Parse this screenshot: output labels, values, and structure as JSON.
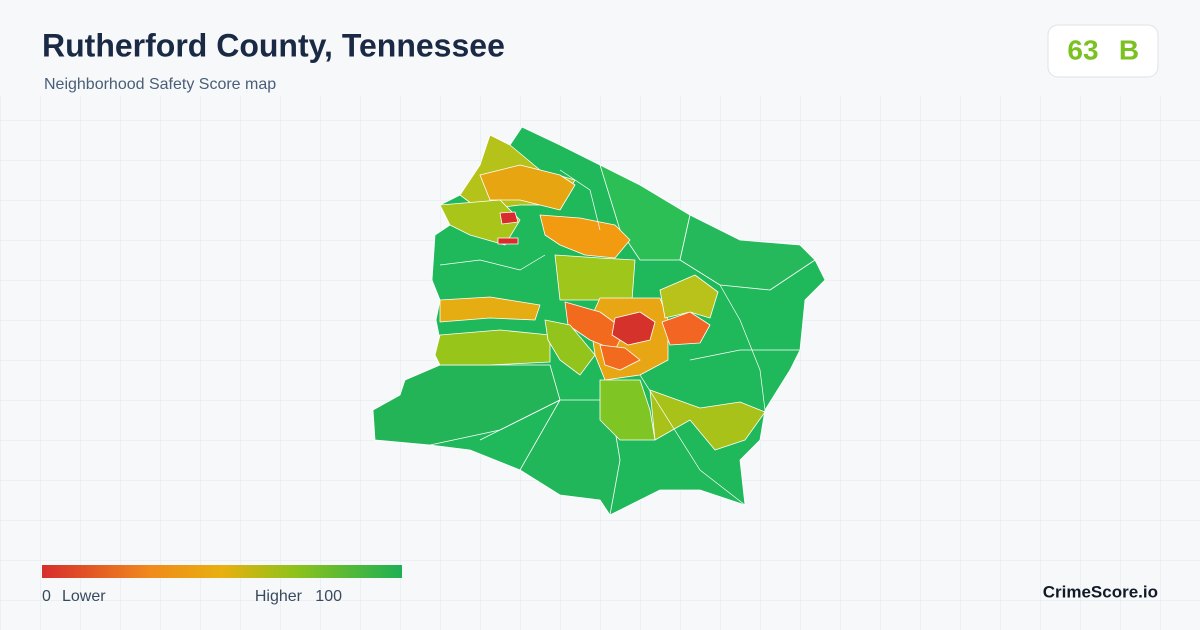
{
  "header": {
    "title": "Rutherford County, Tennessee",
    "subtitle": "Neighborhood Safety Score map"
  },
  "score": {
    "value": 63,
    "grade": "B"
  },
  "legend": {
    "min": 0,
    "min_label": "Lower",
    "max_label": "Higher",
    "max": 100
  },
  "brand": "CrimeScore.io"
}
